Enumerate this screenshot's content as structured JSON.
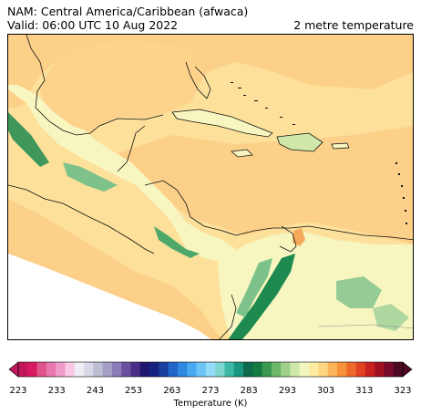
{
  "header": {
    "line1": "NAM: Central America/Caribbean (afwaca)",
    "line2": "Valid: 06:00 UTC 10 Aug 2022",
    "variable": "2 metre temperature"
  },
  "map": {
    "region": "Central America / Caribbean",
    "field": "2 metre temperature",
    "palette": {
      "warm_land": "#fdd08a",
      "sea_warm": "#fde09a",
      "cool_highland": "#f8f6c0",
      "green_mountains": "#1e8a50",
      "orange_hot": "#f4aa5a",
      "no_data": "#ffffff",
      "coastline": "#111111"
    }
  },
  "colorbar": {
    "ticks": [
      "223",
      "233",
      "243",
      "253",
      "263",
      "273",
      "283",
      "293",
      "303",
      "313",
      "323"
    ],
    "label": "Temperature (K)",
    "colors": [
      "#c2185b",
      "#d81b60",
      "#e0528a",
      "#e877ad",
      "#f09ccb",
      "#f8c8e4",
      "#eeeef4",
      "#d8d8e6",
      "#bdbdd4",
      "#a39fc6",
      "#8b7bb8",
      "#6a4f9e",
      "#4a2d86",
      "#1f1670",
      "#14237e",
      "#1a3fa0",
      "#1f66c8",
      "#2f88e0",
      "#48a8f0",
      "#6cc4f6",
      "#95dcf8",
      "#7ed6d0",
      "#3db8a6",
      "#1a9580",
      "#0d6a4c",
      "#137a40",
      "#3a9a50",
      "#6cb86a",
      "#9fd18a",
      "#cfe8aa",
      "#f4f6c0",
      "#fdeca0",
      "#fdd682",
      "#fbb45a",
      "#f7923a",
      "#ef6a2a",
      "#e04222",
      "#c8201e",
      "#a01020",
      "#780a2a",
      "#4e0824"
    ]
  }
}
